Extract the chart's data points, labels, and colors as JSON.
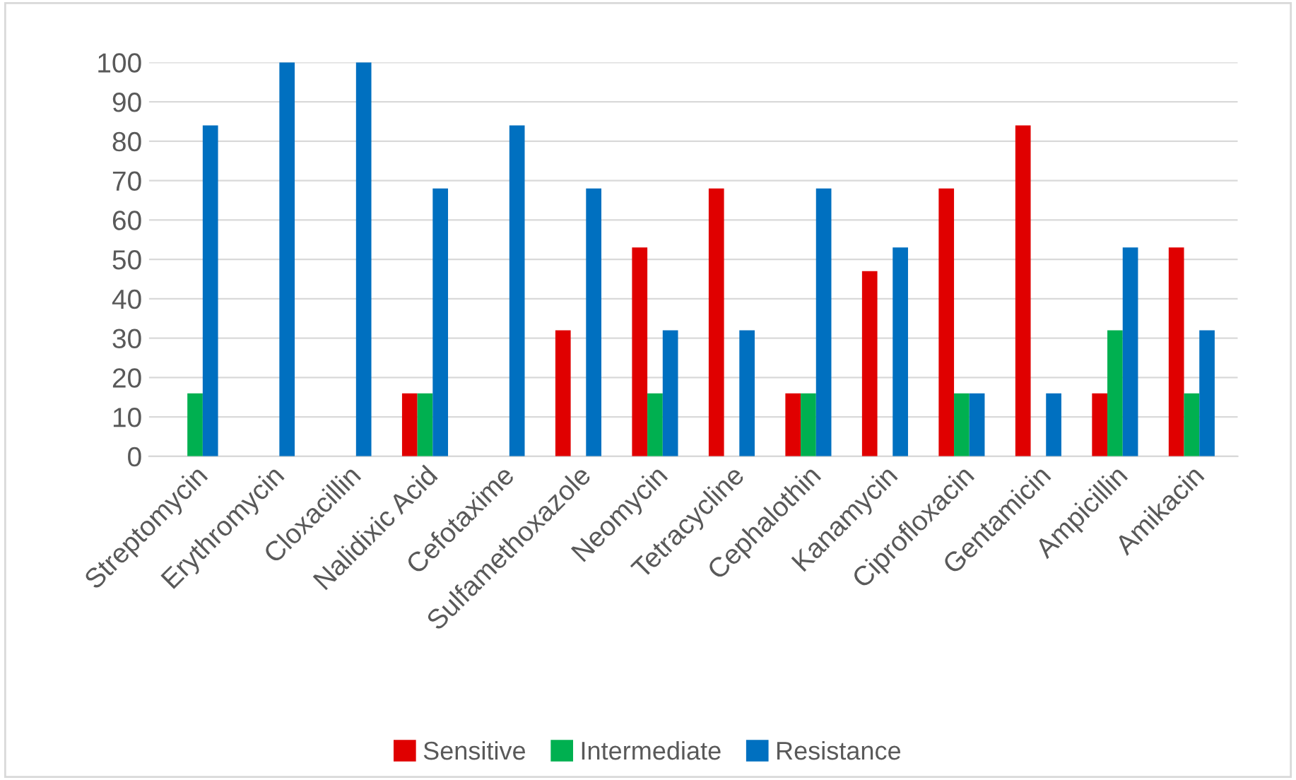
{
  "chart_data": {
    "type": "bar",
    "categories": [
      "Streptomycin",
      "Erythromycin",
      "Cloxacillin",
      "Nalidixic Acid",
      "Cefotaxime",
      "Sulfamethoxazole",
      "Neomycin",
      "Tetracycline",
      "Cephalothin",
      "Kanamycin",
      "Ciprofloxacin",
      "Gentamicin",
      "Ampicillin",
      "Amikacin"
    ],
    "series": [
      {
        "name": "Sensitive",
        "color": "#e00000",
        "values": [
          0,
          0,
          0,
          16,
          0,
          32,
          53,
          68,
          16,
          47,
          68,
          84,
          16,
          53
        ]
      },
      {
        "name": "Intermediate",
        "color": "#00b050",
        "values": [
          16,
          0,
          0,
          16,
          0,
          0,
          16,
          0,
          16,
          0,
          16,
          0,
          32,
          16
        ]
      },
      {
        "name": "Resistance",
        "color": "#0070c0",
        "values": [
          84,
          100,
          100,
          68,
          84,
          68,
          32,
          32,
          68,
          53,
          16,
          16,
          53,
          32
        ]
      }
    ],
    "ylim": [
      0,
      100
    ],
    "yticks": [
      0,
      10,
      20,
      30,
      40,
      50,
      60,
      70,
      80,
      90,
      100
    ],
    "grid": "y",
    "legend": "bottom"
  }
}
